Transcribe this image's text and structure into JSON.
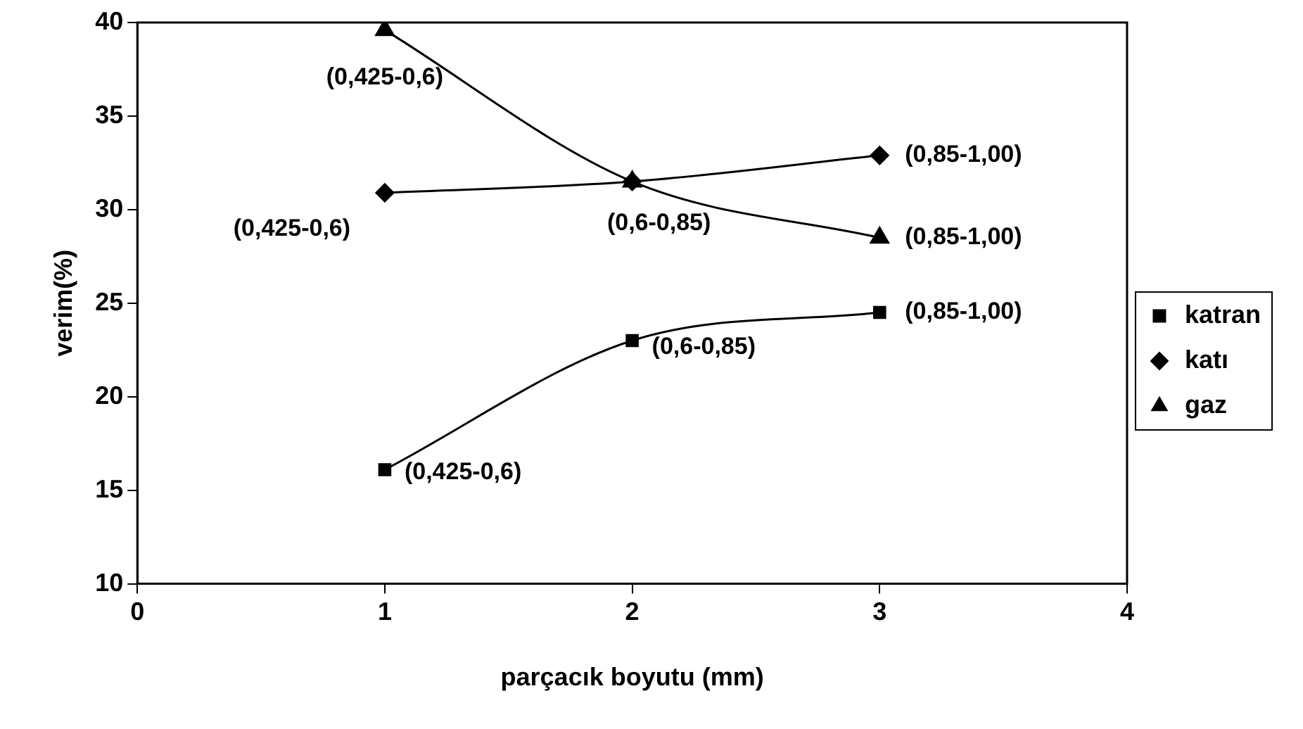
{
  "chart_data": {
    "type": "line",
    "xlabel": "parçacık boyutu (mm)",
    "ylabel": "verim(%)",
    "x": [
      1,
      2,
      3
    ],
    "xlim": [
      0,
      4
    ],
    "xticks": [
      0,
      1,
      2,
      3,
      4
    ],
    "ylim": [
      10,
      40
    ],
    "yticks": [
      10,
      15,
      20,
      25,
      30,
      35,
      40
    ],
    "grid": false,
    "legend": "right",
    "line_style": "solid",
    "series": [
      {
        "name": "katran",
        "color": "#000000",
        "marker": "square",
        "values": [
          16.1,
          23.0,
          24.5
        ]
      },
      {
        "name": "katı",
        "color": "#000000",
        "marker": "diamond",
        "values": [
          30.9,
          31.5,
          32.9
        ]
      },
      {
        "name": "gaz",
        "color": "#000000",
        "marker": "triangle",
        "values": [
          39.6,
          31.5,
          28.5
        ]
      }
    ],
    "annotations": [
      {
        "text": "(0,425-0,6)",
        "x": 1,
        "y": 39.6
      },
      {
        "text": "(0,425-0,6)",
        "x": 1,
        "y": 30.9
      },
      {
        "text": "(0,425-0,6)",
        "x": 1,
        "y": 16.1
      },
      {
        "text": "(0,6-0,85)",
        "x": 2,
        "y": 31.5
      },
      {
        "text": "(0,6-0,85)",
        "x": 2,
        "y": 23.0
      },
      {
        "text": "(0,85-1,00)",
        "x": 3,
        "y": 32.9
      },
      {
        "text": "(0,85-1,00)",
        "x": 3,
        "y": 28.5
      },
      {
        "text": "(0,85-1,00)",
        "x": 3,
        "y": 24.5
      }
    ]
  }
}
